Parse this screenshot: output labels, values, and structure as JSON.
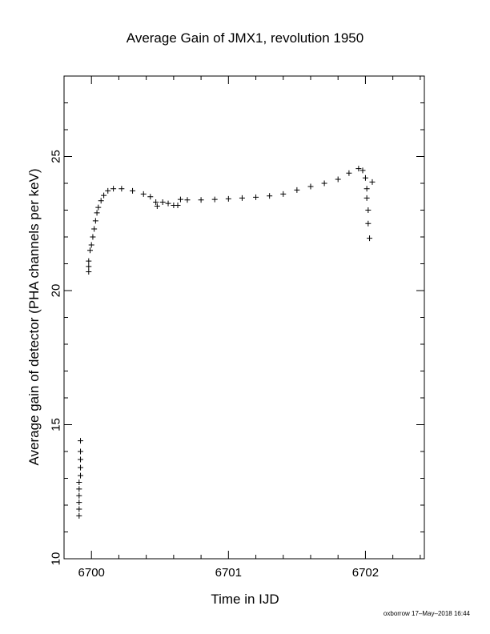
{
  "chart_data": {
    "type": "scatter",
    "marker": "+",
    "title": "Average Gain of JMX1, revolution 1950",
    "xlabel": "Time in IJD",
    "ylabel": "Average gain of detector (PHA channels per keV)",
    "xlim": [
      6699.8,
      6702.43
    ],
    "ylim": [
      10,
      28
    ],
    "x_ticks": [
      6700,
      6701,
      6702
    ],
    "x_tick_labels": [
      "6700",
      "6701",
      "6702"
    ],
    "y_ticks": [
      10,
      15,
      20,
      25
    ],
    "y_tick_labels": [
      "10",
      "15",
      "20",
      "25"
    ],
    "grid": false,
    "legend": "none",
    "series": [
      {
        "points": [
          [
            6699.91,
            11.6
          ],
          [
            6699.91,
            11.85
          ],
          [
            6699.91,
            12.1
          ],
          [
            6699.91,
            12.35
          ],
          [
            6699.91,
            12.6
          ],
          [
            6699.91,
            12.85
          ],
          [
            6699.92,
            13.1
          ],
          [
            6699.92,
            13.4
          ],
          [
            6699.92,
            13.7
          ],
          [
            6699.92,
            14.0
          ],
          [
            6699.92,
            14.4
          ],
          [
            6699.98,
            20.7
          ],
          [
            6699.98,
            20.9
          ],
          [
            6699.98,
            21.1
          ],
          [
            6699.99,
            21.5
          ],
          [
            6700.0,
            21.7
          ],
          [
            6700.01,
            22.0
          ],
          [
            6700.02,
            22.3
          ],
          [
            6700.03,
            22.6
          ],
          [
            6700.04,
            22.9
          ],
          [
            6700.05,
            23.1
          ],
          [
            6700.07,
            23.35
          ],
          [
            6700.09,
            23.55
          ],
          [
            6700.12,
            23.72
          ],
          [
            6700.16,
            23.8
          ],
          [
            6700.22,
            23.8
          ],
          [
            6700.3,
            23.72
          ],
          [
            6700.38,
            23.6
          ],
          [
            6700.43,
            23.5
          ],
          [
            6700.47,
            23.3
          ],
          [
            6700.48,
            23.15
          ],
          [
            6700.52,
            23.3
          ],
          [
            6700.56,
            23.25
          ],
          [
            6700.6,
            23.18
          ],
          [
            6700.63,
            23.18
          ],
          [
            6700.65,
            23.4
          ],
          [
            6700.7,
            23.38
          ],
          [
            6700.8,
            23.38
          ],
          [
            6700.9,
            23.4
          ],
          [
            6701.0,
            23.42
          ],
          [
            6701.1,
            23.45
          ],
          [
            6701.2,
            23.48
          ],
          [
            6701.3,
            23.53
          ],
          [
            6701.4,
            23.6
          ],
          [
            6701.5,
            23.75
          ],
          [
            6701.6,
            23.88
          ],
          [
            6701.7,
            24.0
          ],
          [
            6701.8,
            24.15
          ],
          [
            6701.88,
            24.38
          ],
          [
            6701.95,
            24.55
          ],
          [
            6701.98,
            24.48
          ],
          [
            6702.0,
            24.2
          ],
          [
            6702.01,
            23.8
          ],
          [
            6702.01,
            23.45
          ],
          [
            6702.02,
            23.0
          ],
          [
            6702.02,
            22.5
          ],
          [
            6702.03,
            21.95
          ],
          [
            6702.05,
            24.05
          ]
        ]
      }
    ]
  },
  "footer": {
    "credit": "oxborrow 17–May–2018 16:44"
  }
}
